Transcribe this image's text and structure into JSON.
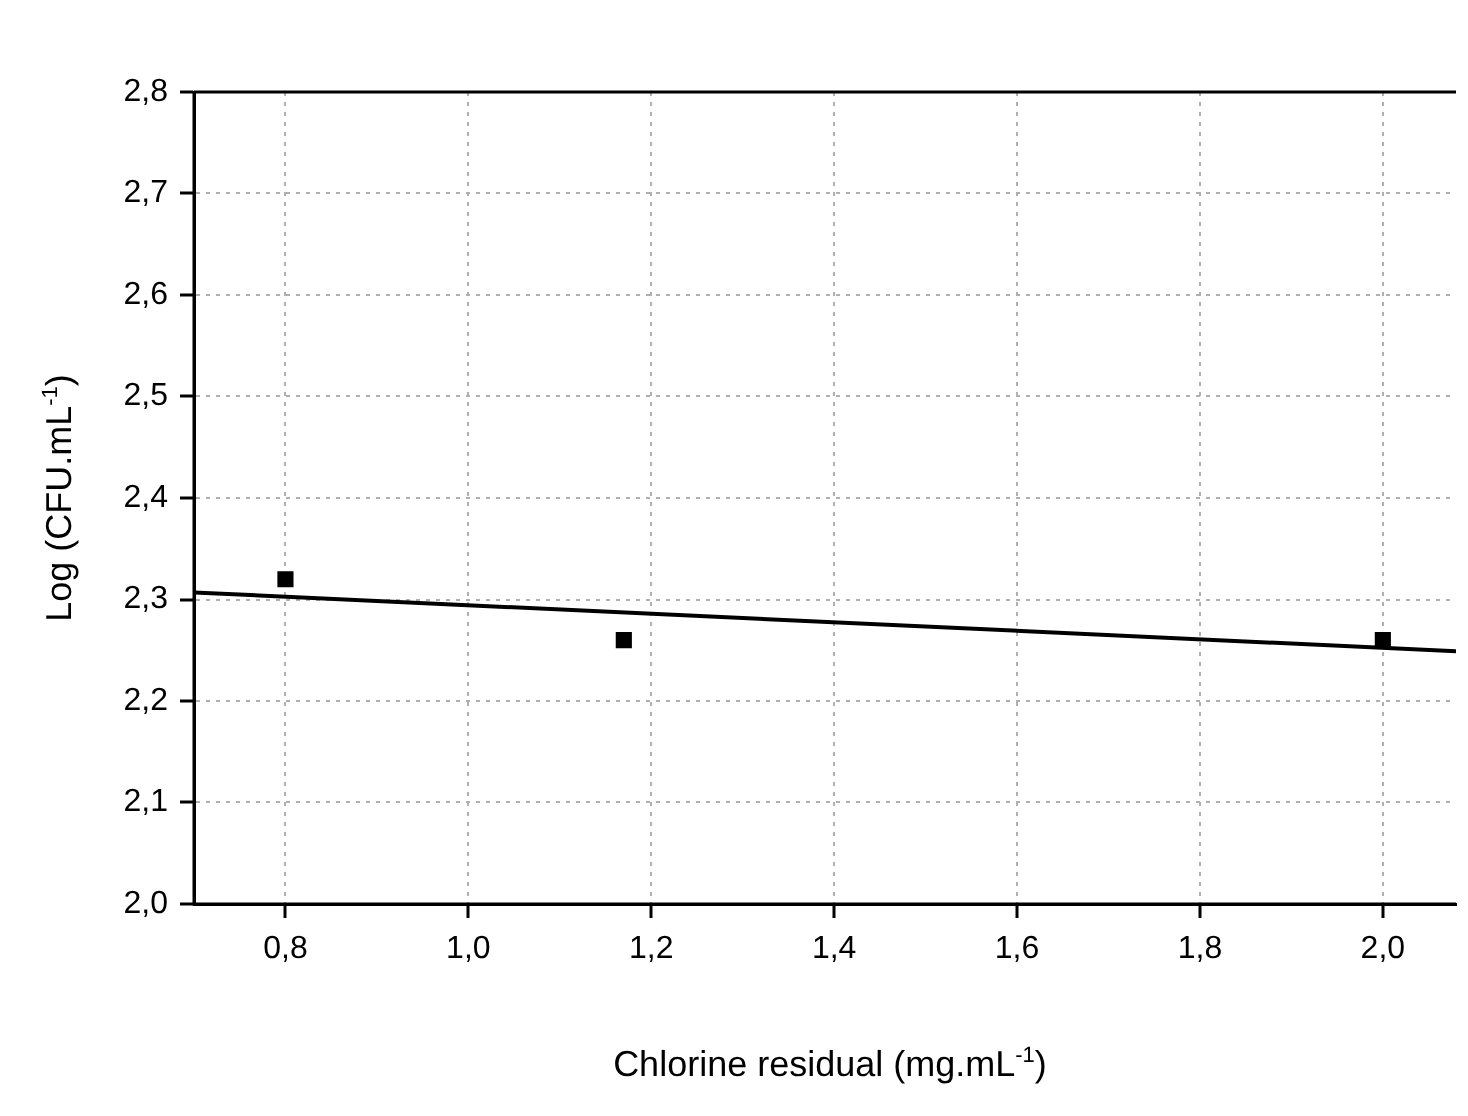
{
  "chart_data": {
    "type": "scatter",
    "xlabel": "Chlorine residual (mg.mL$^{-1}$)",
    "ylabel": "Log (CFU.mL$^{-1}$)",
    "xlim": [
      0.7,
      2.08
    ],
    "xticks": [
      {
        "value": 0.8,
        "label": "0,8"
      },
      {
        "value": 1.0,
        "label": "1,0"
      },
      {
        "value": 1.2,
        "label": "1,2"
      },
      {
        "value": 1.4,
        "label": "1,4"
      },
      {
        "value": 1.6,
        "label": "1,6"
      },
      {
        "value": 1.8,
        "label": "1,8"
      },
      {
        "value": 2.0,
        "label": "2,0"
      }
    ],
    "ylim": [
      2.0,
      2.8
    ],
    "yticks": [
      {
        "value": 2.0,
        "label": "2,0"
      },
      {
        "value": 2.1,
        "label": "2,1"
      },
      {
        "value": 2.2,
        "label": "2,2"
      },
      {
        "value": 2.3,
        "label": "2,3"
      },
      {
        "value": 2.4,
        "label": "2,4"
      },
      {
        "value": 2.5,
        "label": "2,5"
      },
      {
        "value": 2.6,
        "label": "2,6"
      },
      {
        "value": 2.7,
        "label": "2,7"
      },
      {
        "value": 2.8,
        "label": "2,8"
      }
    ],
    "grid": true,
    "legend": false,
    "series": [
      {
        "type": "scatter",
        "color": "#000000",
        "marker": "square",
        "x": [
          0.8,
          1.17,
          2.0
        ],
        "values": [
          2.32,
          2.26,
          2.26
        ]
      },
      {
        "type": "line",
        "color": "#000000",
        "marker": "none",
        "line_style": "solid",
        "x": [
          0.7,
          2.08
        ],
        "values": [
          2.307,
          2.249
        ]
      }
    ]
  }
}
